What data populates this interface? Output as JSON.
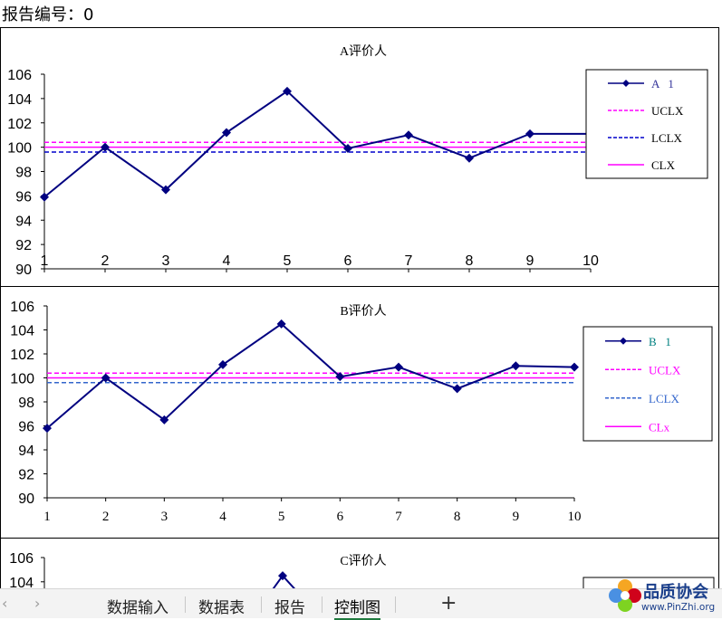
{
  "report": {
    "label": "报告编号：",
    "value": "0"
  },
  "colors": {
    "series_line": "#000080",
    "ucl": "#ff00ff",
    "lcl_a": "#0000cc",
    "lcl_b": "#3366cc",
    "cl": "#ff00ff",
    "legend_text_a": "#333399",
    "legend_text_b": "#008080"
  },
  "charts": [
    {
      "id": "A",
      "title": "A评价人",
      "legend": {
        "series": "A   1",
        "ucl": "UCLX",
        "lcl": "LCLX",
        "cl": "CLX"
      },
      "x_ticks": [
        "1",
        "2",
        "3",
        "4",
        "5",
        "6",
        "7",
        "8",
        "9",
        "10"
      ],
      "y_ticks": [
        "90",
        "92",
        "94",
        "96",
        "98",
        "100",
        "102",
        "104",
        "106"
      ]
    },
    {
      "id": "B",
      "title": "B评价人",
      "legend": {
        "series": "B   1",
        "ucl": "UCLX",
        "lcl": "LCLX",
        "cl": "CLx"
      },
      "x_ticks": [
        "1",
        "2",
        "3",
        "4",
        "5",
        "6",
        "7",
        "8",
        "9",
        "10"
      ],
      "y_ticks": [
        "90",
        "92",
        "94",
        "96",
        "98",
        "100",
        "102",
        "104",
        "106"
      ]
    },
    {
      "id": "C",
      "title": "C评价人",
      "y_ticks_visible": [
        "104",
        "106"
      ]
    }
  ],
  "chart_data": [
    {
      "type": "line",
      "title": "A评价人",
      "x": [
        1,
        2,
        3,
        4,
        5,
        6,
        7,
        8,
        9,
        10
      ],
      "series": [
        {
          "name": "A   1",
          "values": [
            95.9,
            100.0,
            96.5,
            101.2,
            104.6,
            99.9,
            101.0,
            99.1,
            101.1,
            101.1
          ]
        },
        {
          "name": "UCLX",
          "values": [
            100.4,
            100.4,
            100.4,
            100.4,
            100.4,
            100.4,
            100.4,
            100.4,
            100.4,
            100.4
          ]
        },
        {
          "name": "LCLX",
          "values": [
            99.6,
            99.6,
            99.6,
            99.6,
            99.6,
            99.6,
            99.6,
            99.6,
            99.6,
            99.6
          ]
        },
        {
          "name": "CLX",
          "values": [
            100.0,
            100.0,
            100.0,
            100.0,
            100.0,
            100.0,
            100.0,
            100.0,
            100.0,
            100.0
          ]
        }
      ],
      "ylim": [
        90,
        106
      ],
      "grid": false,
      "legend_position": "right"
    },
    {
      "type": "line",
      "title": "B评价人",
      "x": [
        1,
        2,
        3,
        4,
        5,
        6,
        7,
        8,
        9,
        10
      ],
      "series": [
        {
          "name": "B   1",
          "values": [
            95.8,
            100.0,
            96.5,
            101.1,
            104.5,
            100.1,
            100.9,
            99.1,
            101.0,
            100.9
          ]
        },
        {
          "name": "UCLX",
          "values": [
            100.4,
            100.4,
            100.4,
            100.4,
            100.4,
            100.4,
            100.4,
            100.4,
            100.4,
            100.4
          ]
        },
        {
          "name": "LCLX",
          "values": [
            99.6,
            99.6,
            99.6,
            99.6,
            99.6,
            99.6,
            99.6,
            99.6,
            99.6,
            99.6
          ]
        },
        {
          "name": "CLx",
          "values": [
            100.0,
            100.0,
            100.0,
            100.0,
            100.0,
            100.0,
            100.0,
            100.0,
            100.0,
            100.0
          ]
        }
      ],
      "ylim": [
        90,
        106
      ],
      "grid": false,
      "legend_position": "right"
    },
    {
      "type": "line",
      "title": "C评价人",
      "note": "partially visible",
      "series": [
        {
          "values": [
            null,
            null,
            null,
            null,
            104.5
          ]
        }
      ],
      "ylim": [
        90,
        106
      ]
    }
  ],
  "tabs": {
    "prev_icon": "chevron-left-icon",
    "next_icon": "chevron-right-icon",
    "items": [
      {
        "label": "数据输入",
        "active": false
      },
      {
        "label": "数据表",
        "active": false
      },
      {
        "label": "报告",
        "active": false
      },
      {
        "label": "控制图",
        "active": true
      }
    ],
    "add_label": "+"
  },
  "watermark": {
    "title": "品质协会",
    "url": "www.PinZhi.org"
  }
}
